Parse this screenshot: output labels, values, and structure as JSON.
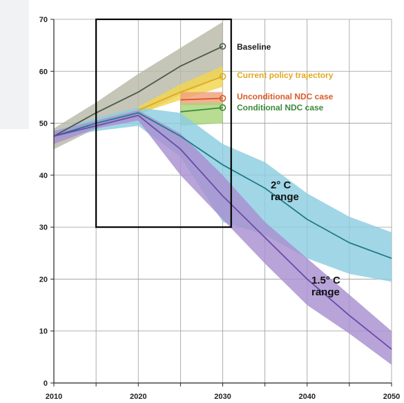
{
  "chart_data": {
    "type": "area",
    "xlim": [
      2010,
      2050
    ],
    "ylim": [
      0,
      70
    ],
    "x_ticks": [
      2010,
      2020,
      2030,
      2040,
      2050
    ],
    "y_ticks": [
      0,
      10,
      20,
      30,
      40,
      50,
      60,
      70
    ],
    "grid": true,
    "zoom_box": {
      "x": [
        2015,
        2031
      ],
      "y": [
        30,
        70
      ]
    },
    "series": [
      {
        "name": "Baseline",
        "color": "#4a5a4a",
        "band_color": "#b8b8a8",
        "x": [
          2010,
          2015,
          2020,
          2025,
          2030
        ],
        "values": [
          47.5,
          52,
          56,
          61,
          64.8
        ],
        "low": [
          45,
          49,
          51.5,
          55.5,
          59
        ],
        "high": [
          49,
          54,
          59.5,
          64.5,
          69.5
        ]
      },
      {
        "name": "Current policy trajectory",
        "color": "#e0a820",
        "band_color": "#f2d54e",
        "x": [
          2020,
          2025,
          2030
        ],
        "values": [
          52.5,
          56,
          59
        ],
        "low": [
          51.8,
          54.5,
          57
        ],
        "high": [
          53.2,
          57.5,
          61
        ]
      },
      {
        "name": "Unconditional NDC case",
        "color": "#d95a28",
        "band_color": "#f0a07a",
        "x": [
          2025,
          2030
        ],
        "values": [
          54.5,
          54.8
        ],
        "low": [
          53.5,
          53.5
        ],
        "high": [
          56,
          56
        ]
      },
      {
        "name": "Conditional NDC case",
        "color": "#3a8a3a",
        "band_color": "#a8d47a",
        "x": [
          2025,
          2030
        ],
        "values": [
          52.2,
          53
        ],
        "low": [
          49.5,
          50
        ],
        "high": [
          53.8,
          54
        ]
      },
      {
        "name": "2°C range",
        "color": "#1f7a8a",
        "band_color": "#8ccde0",
        "x": [
          2010,
          2015,
          2020,
          2025,
          2030,
          2035,
          2040,
          2045,
          2050
        ],
        "values": [
          47.5,
          50,
          52,
          47.5,
          42,
          37.5,
          31.5,
          27,
          24
        ],
        "low": [
          47,
          48.5,
          49.5,
          43.5,
          31,
          28.5,
          24,
          21,
          19.5
        ],
        "high": [
          48.5,
          51,
          53,
          52,
          46,
          42.5,
          36.5,
          32,
          29
        ]
      },
      {
        "name": "1.5°C range",
        "color": "#6a4aa8",
        "band_color": "#a890d0",
        "x": [
          2010,
          2015,
          2020,
          2025,
          2030,
          2035,
          2040,
          2045,
          2050
        ],
        "values": [
          47.5,
          49.5,
          51.5,
          45,
          36,
          28,
          20,
          13,
          6.5
        ],
        "low": [
          46,
          49,
          50.5,
          40,
          31.5,
          23,
          15,
          9.5,
          3.5
        ],
        "high": [
          48.5,
          50.5,
          52.5,
          48,
          40,
          31,
          24,
          17,
          10
        ]
      }
    ],
    "annotations": {
      "baseline": "Baseline",
      "current_policy": "Current policy trajectory",
      "unconditional": "Unconditional NDC case",
      "conditional": "Conditional NDC case",
      "two_c_line1": "2° C",
      "two_c_line2": "range",
      "one_five_line1": "1.5° C",
      "one_five_line2": "range"
    }
  }
}
